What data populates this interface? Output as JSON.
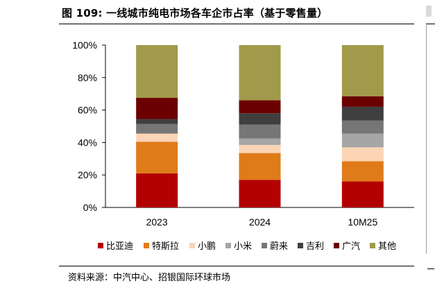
{
  "header": {
    "title": "图 109: 一线城市纯电市场各车企市占率（基于零售量）"
  },
  "footer": {
    "source": "资料来源：中汽中心、招银国际环球市场"
  },
  "chart_data": {
    "type": "bar",
    "stacked": true,
    "title": "",
    "xlabel": "",
    "ylabel": "",
    "ylim": [
      0,
      100
    ],
    "y_ticks": [
      "0%",
      "20%",
      "40%",
      "60%",
      "80%",
      "100%"
    ],
    "y_tick_values": [
      0,
      20,
      40,
      60,
      80,
      100
    ],
    "categories": [
      "2023",
      "2024",
      "10M25"
    ],
    "legend_position": "bottom",
    "grid": false,
    "series": [
      {
        "name": "比亚迪",
        "color": "#b30000",
        "values": [
          21,
          17,
          16
        ]
      },
      {
        "name": "特斯拉",
        "color": "#e07b1a",
        "values": [
          19.5,
          16.5,
          12.5
        ]
      },
      {
        "name": "小鹏",
        "color": "#fbd5b5",
        "values": [
          5,
          5,
          8.5
        ]
      },
      {
        "name": "小米",
        "color": "#a6a6a6",
        "values": [
          0,
          4,
          8.5
        ]
      },
      {
        "name": "蔚来",
        "color": "#767676",
        "values": [
          6,
          8.5,
          8
        ]
      },
      {
        "name": "吉利",
        "color": "#3f3f3f",
        "values": [
          3,
          7,
          8.5
        ]
      },
      {
        "name": "广汽",
        "color": "#6b0000",
        "values": [
          13,
          8,
          6.5
        ]
      },
      {
        "name": "其他",
        "color": "#a19a4a",
        "values": [
          32.5,
          34,
          31.5
        ]
      }
    ]
  }
}
